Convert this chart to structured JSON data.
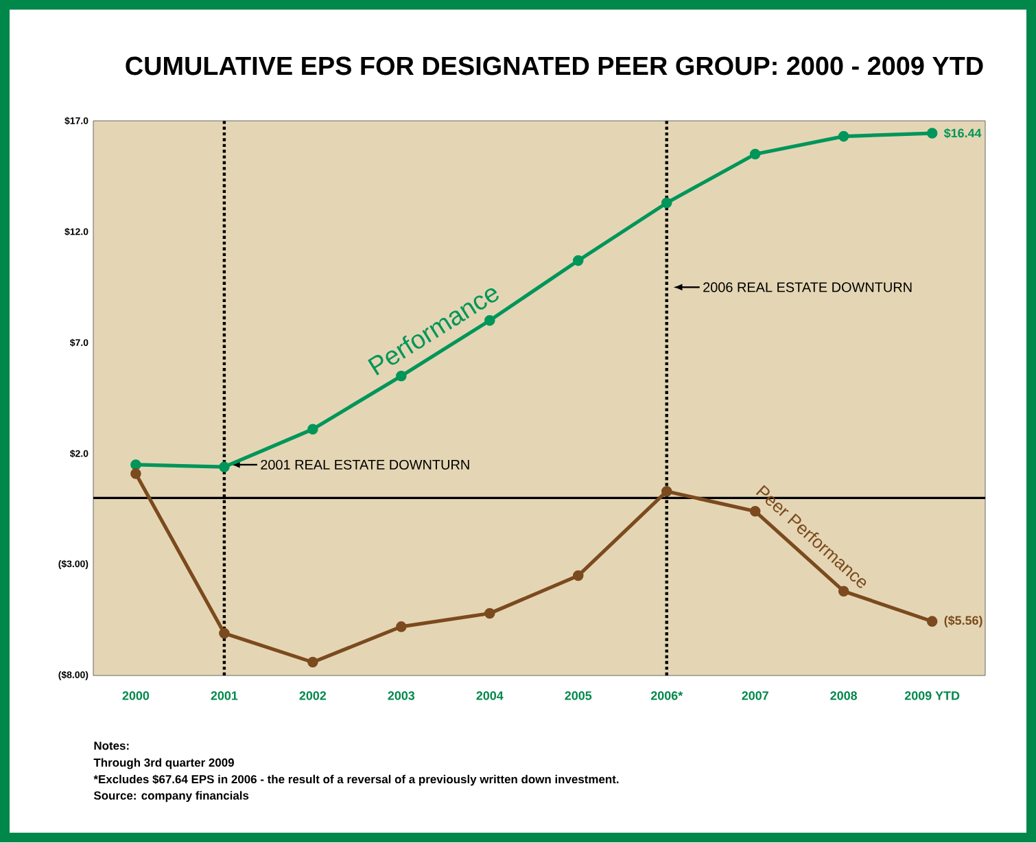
{
  "chart_data": {
    "type": "line",
    "title": "CUMULATIVE EPS FOR DESIGNATED PEER GROUP: 2000 - 2009 YTD",
    "categories": [
      "2000",
      "2001",
      "2002",
      "2003",
      "2004",
      "2005",
      "2006*",
      "2007",
      "2008",
      "2009 YTD"
    ],
    "series": [
      {
        "name": "Performance",
        "color": "#00955a",
        "values": [
          1.5,
          1.4,
          3.1,
          5.5,
          8.0,
          10.7,
          13.3,
          15.5,
          16.3,
          16.44
        ],
        "value_labels": [
          null,
          null,
          null,
          null,
          null,
          null,
          null,
          null,
          null,
          "$16.44"
        ]
      },
      {
        "name": "Peer Performance",
        "color": "#7b4a1e",
        "values": [
          1.1,
          -6.1,
          -7.4,
          -5.8,
          -5.2,
          -3.5,
          0.3,
          -0.6,
          -4.2,
          -5.56
        ],
        "value_labels": [
          null,
          null,
          null,
          null,
          null,
          null,
          null,
          null,
          null,
          "($5.56)"
        ]
      }
    ],
    "ylim": [
      -8,
      17
    ],
    "yticks": [
      {
        "value": 17,
        "label": "$17.0"
      },
      {
        "value": 12,
        "label": "$12.0"
      },
      {
        "value": 7,
        "label": "$7.0"
      },
      {
        "value": 2,
        "label": "$2.0"
      },
      {
        "value": -3,
        "label": "($3.00)"
      },
      {
        "value": -8,
        "label": "($8.00)"
      }
    ],
    "ref_lines": [
      {
        "axis": "y",
        "value": 0,
        "color": "#000000",
        "line_style": "solid"
      },
      {
        "axis": "x",
        "value": "2001",
        "label": "2001 REAL ESTATE DOWNTURN",
        "color": "#000000",
        "line_style": "dotted"
      },
      {
        "axis": "x",
        "value": "2006*",
        "label": "2006 REAL ESTATE DOWNTURN",
        "color": "#000000",
        "line_style": "dotted"
      }
    ],
    "marker": "circle",
    "line_style": "solid",
    "grid": false,
    "annotations": [
      "Notes:",
      "Through 3rd quarter 2009",
      "*Excludes $67.64 EPS in 2006 - the result of a reversal of a previously written down investment.",
      "Source: company financials"
    ]
  }
}
